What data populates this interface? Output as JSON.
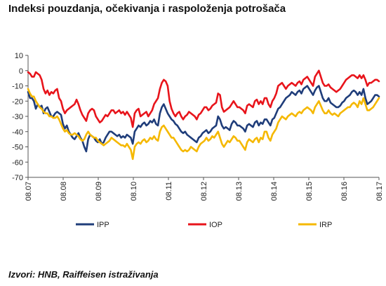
{
  "title": "Indeksi pouzdanja, očekivanja i raspoloženja potrošača",
  "source": "Izvori: HNB, Raiffeisen istraživanja",
  "chart_data": {
    "type": "line",
    "title": "Indeksi pouzdanja, očekivanja i raspoloženja potrošača",
    "xlabel": "",
    "ylabel": "",
    "ylim": [
      -70,
      10
    ],
    "yticks": [
      10,
      0,
      -10,
      -20,
      -30,
      -40,
      -50,
      -60,
      -70
    ],
    "xticks": [
      "08.07",
      "08.08",
      "08.09",
      "08.10",
      "08.11",
      "08.12",
      "08.13",
      "08.14",
      "08.15",
      "08.16",
      "08.17"
    ],
    "x_start": "2007-08",
    "x_end": "2017-08",
    "grid": false,
    "legend_position": "bottom",
    "series": [
      {
        "name": "IPP",
        "color": "#1F3D7A",
        "values": [
          -14,
          -18,
          -18,
          -20,
          -25,
          -22,
          -24,
          -23,
          -28,
          -25,
          -24,
          -27,
          -30,
          -30,
          -28,
          -27,
          -28,
          -29,
          -35,
          -38,
          -36,
          -40,
          -42,
          -44,
          -45,
          -43,
          -41,
          -44,
          -46,
          -50,
          -53,
          -45,
          -42,
          -43,
          -44,
          -46,
          -47,
          -45,
          -48,
          -47,
          -44,
          -42,
          -40,
          -40,
          -41,
          -42,
          -43,
          -42,
          -44,
          -43,
          -44,
          -42,
          -43,
          -44,
          -48,
          -40,
          -38,
          -36,
          -37,
          -35,
          -34,
          -36,
          -35,
          -33,
          -34,
          -32,
          -35,
          -36,
          -28,
          -24,
          -22,
          -25,
          -28,
          -30,
          -32,
          -33,
          -35,
          -36,
          -38,
          -40,
          -41,
          -40,
          -42,
          -43,
          -44,
          -45,
          -46,
          -47,
          -44,
          -43,
          -41,
          -40,
          -39,
          -41,
          -40,
          -38,
          -37,
          -36,
          -30,
          -32,
          -36,
          -38,
          -37,
          -38,
          -39,
          -35,
          -33,
          -34,
          -36,
          -36,
          -37,
          -38,
          -40,
          -36,
          -35,
          -36,
          -37,
          -34,
          -33,
          -36,
          -34,
          -35,
          -32,
          -32,
          -34,
          -36,
          -32,
          -31,
          -28,
          -25,
          -24,
          -22,
          -20,
          -18,
          -17,
          -16,
          -14,
          -15,
          -16,
          -14,
          -13,
          -15,
          -12,
          -11,
          -10,
          -12,
          -14,
          -16,
          -13,
          -11,
          -10,
          -14,
          -18,
          -20,
          -20,
          -18,
          -21,
          -22,
          -23,
          -24,
          -24,
          -23,
          -21,
          -20,
          -18,
          -17,
          -16,
          -14,
          -13,
          -14,
          -16,
          -14,
          -16,
          -12,
          -18,
          -22,
          -21,
          -20,
          -18,
          -16,
          -16,
          -17
        ]
      },
      {
        "name": "IOP",
        "color": "#E8141B",
        "values": [
          -1,
          -2,
          -4,
          -4,
          -1,
          -2,
          -3,
          -6,
          -12,
          -15,
          -13,
          -16,
          -14,
          -15,
          -13,
          -12,
          -18,
          -20,
          -25,
          -28,
          -26,
          -25,
          -24,
          -23,
          -22,
          -19,
          -22,
          -26,
          -29,
          -31,
          -33,
          -28,
          -26,
          -25,
          -26,
          -30,
          -32,
          -34,
          -33,
          -31,
          -29,
          -30,
          -28,
          -26,
          -26,
          -28,
          -27,
          -26,
          -28,
          -27,
          -29,
          -27,
          -29,
          -31,
          -37,
          -28,
          -26,
          -25,
          -30,
          -29,
          -28,
          -27,
          -30,
          -28,
          -26,
          -22,
          -20,
          -18,
          -12,
          -8,
          -6,
          -7,
          -10,
          -20,
          -25,
          -28,
          -30,
          -28,
          -27,
          -30,
          -32,
          -30,
          -29,
          -27,
          -28,
          -29,
          -30,
          -32,
          -29,
          -28,
          -26,
          -24,
          -24,
          -26,
          -25,
          -23,
          -22,
          -21,
          -15,
          -16,
          -24,
          -27,
          -26,
          -25,
          -24,
          -22,
          -20,
          -22,
          -24,
          -24,
          -25,
          -26,
          -28,
          -23,
          -22,
          -23,
          -24,
          -20,
          -19,
          -22,
          -20,
          -22,
          -18,
          -18,
          -22,
          -24,
          -20,
          -18,
          -15,
          -10,
          -9,
          -8,
          -10,
          -12,
          -10,
          -9,
          -8,
          -9,
          -10,
          -8,
          -7,
          -9,
          -6,
          -5,
          -4,
          -6,
          -8,
          -10,
          -4,
          -2,
          0,
          -4,
          -8,
          -10,
          -10,
          -9,
          -11,
          -12,
          -13,
          -14,
          -13,
          -12,
          -10,
          -8,
          -6,
          -5,
          -4,
          -3,
          -3,
          -4,
          -5,
          -3,
          -5,
          -3,
          -6,
          -10,
          -8,
          -8,
          -7,
          -6,
          -6,
          -7
        ]
      },
      {
        "name": "IRP",
        "color": "#F5B800",
        "values": [
          -12,
          -15,
          -17,
          -17,
          -20,
          -22,
          -24,
          -25,
          -27,
          -28,
          -28,
          -30,
          -30,
          -31,
          -31,
          -30,
          -32,
          -35,
          -38,
          -40,
          -39,
          -41,
          -42,
          -42,
          -41,
          -42,
          -43,
          -45,
          -46,
          -45,
          -42,
          -40,
          -42,
          -43,
          -44,
          -44,
          -46,
          -47,
          -48,
          -49,
          -48,
          -47,
          -46,
          -44,
          -45,
          -46,
          -47,
          -48,
          -49,
          -49,
          -50,
          -48,
          -50,
          -52,
          -58,
          -50,
          -48,
          -47,
          -48,
          -46,
          -45,
          -47,
          -46,
          -44,
          -45,
          -43,
          -45,
          -46,
          -40,
          -37,
          -36,
          -38,
          -40,
          -42,
          -44,
          -44,
          -46,
          -48,
          -50,
          -52,
          -53,
          -52,
          -53,
          -52,
          -50,
          -51,
          -52,
          -53,
          -50,
          -48,
          -47,
          -46,
          -44,
          -46,
          -45,
          -43,
          -44,
          -42,
          -40,
          -44,
          -48,
          -50,
          -48,
          -46,
          -47,
          -45,
          -43,
          -44,
          -46,
          -46,
          -48,
          -50,
          -52,
          -47,
          -45,
          -46,
          -47,
          -45,
          -44,
          -47,
          -44,
          -45,
          -40,
          -40,
          -44,
          -46,
          -42,
          -40,
          -38,
          -34,
          -32,
          -30,
          -31,
          -32,
          -30,
          -29,
          -28,
          -29,
          -30,
          -28,
          -27,
          -28,
          -26,
          -25,
          -24,
          -25,
          -26,
          -28,
          -24,
          -22,
          -20,
          -23,
          -26,
          -28,
          -28,
          -26,
          -28,
          -29,
          -28,
          -29,
          -30,
          -28,
          -27,
          -26,
          -25,
          -24,
          -24,
          -22,
          -21,
          -22,
          -24,
          -20,
          -22,
          -18,
          -22,
          -26,
          -26,
          -25,
          -24,
          -22,
          -20,
          -18
        ]
      }
    ]
  }
}
